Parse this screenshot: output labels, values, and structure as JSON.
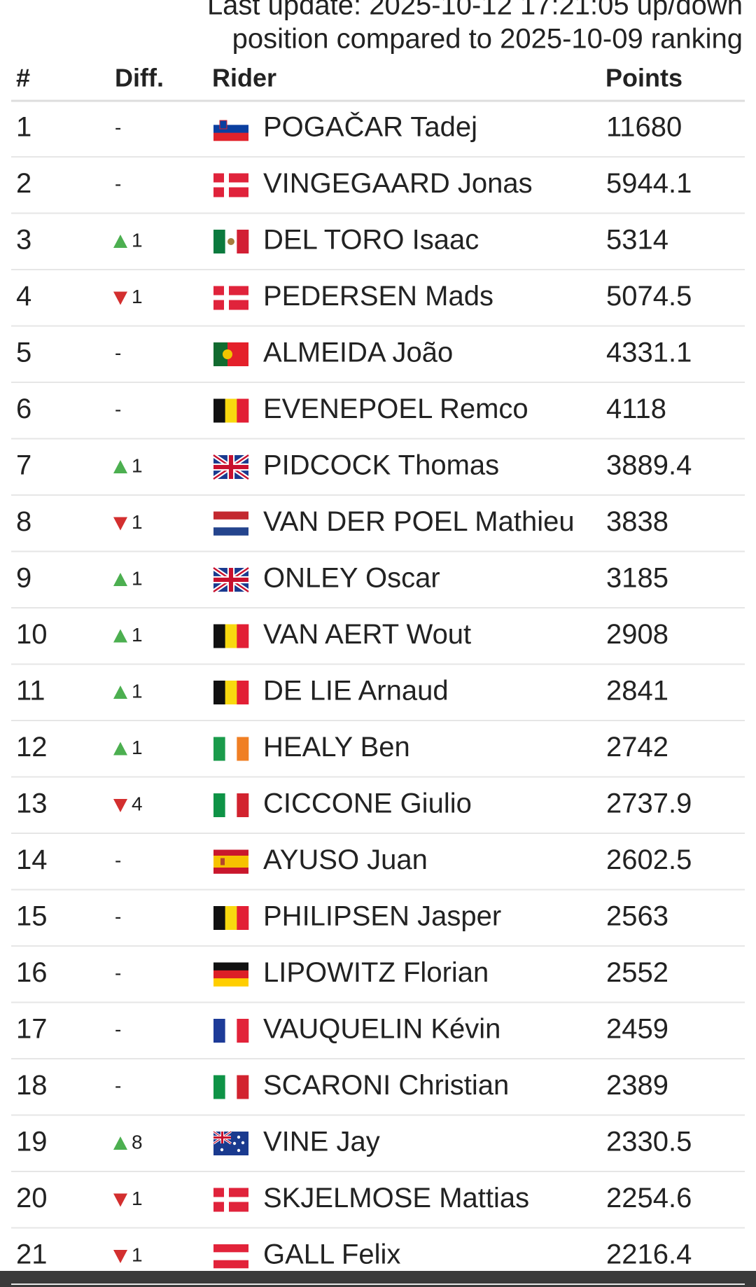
{
  "header": {
    "lines": [
      "Last update: 2025-10-12 17:21:05 up/down",
      "position compared to 2025-10-09 ranking"
    ]
  },
  "table": {
    "columns": [
      "#",
      "Diff.",
      "Rider",
      "Points"
    ],
    "rows": [
      {
        "rank": 1,
        "move": "-",
        "rider": "POGAČAR Tadej",
        "points": 11680
      },
      {
        "rank": 2,
        "move": "-",
        "rider": "VINGEGAARD Jonas",
        "points": 5944.1
      },
      {
        "rank": 3,
        "move": {
          "dir": "up",
          "n": 1
        },
        "rider": "DEL TORO Isaac",
        "points": 5314
      },
      {
        "rank": 4,
        "move": {
          "dir": "down",
          "n": 1
        },
        "rider": "PEDERSEN Mads",
        "points": 5074.5
      },
      {
        "rank": 5,
        "move": "-",
        "rider": "ALMEIDA João",
        "points": 4331.1
      },
      {
        "rank": 6,
        "move": "-",
        "rider": "EVENEPOEL Remco",
        "points": 4118
      },
      {
        "rank": 7,
        "move": {
          "dir": "up",
          "n": 1
        },
        "rider": "PIDCOCK Thomas",
        "points": 3889.4
      },
      {
        "rank": 8,
        "move": {
          "dir": "down",
          "n": 1
        },
        "rider": "VAN DER POEL Mathieu",
        "points": 3838
      },
      {
        "rank": 9,
        "move": {
          "dir": "up",
          "n": 1
        },
        "rider": "ONLEY Oscar",
        "points": 3185
      },
      {
        "rank": 10,
        "move": {
          "dir": "up",
          "n": 1
        },
        "rider": "VAN AERT Wout",
        "points": 2908
      },
      {
        "rank": 11,
        "move": {
          "dir": "up",
          "n": 1
        },
        "rider": "DE LIE Arnaud",
        "points": 2841
      },
      {
        "rank": 12,
        "move": {
          "dir": "up",
          "n": 1
        },
        "rider": "HEALY Ben",
        "points": 2742
      },
      {
        "rank": 13,
        "move": {
          "dir": "down",
          "n": 4
        },
        "rider": "CICCONE Giulio",
        "points": 2737.9
      },
      {
        "rank": 14,
        "move": "-",
        "rider": "AYUSO Juan",
        "points": 2602.5
      },
      {
        "rank": 15,
        "move": "-",
        "rider": "PHILIPSEN Jasper",
        "points": 2563
      },
      {
        "rank": 16,
        "move": "-",
        "rider": "LIPOWITZ Florian",
        "points": 2552
      },
      {
        "rank": 17,
        "move": "-",
        "rider": "VAUQUELIN Kévin",
        "points": 2459
      },
      {
        "rank": 18,
        "move": "-",
        "rider": "SCARONI Christian",
        "points": 2389
      },
      {
        "rank": 19,
        "move": {
          "dir": "up",
          "n": 8
        },
        "rider": "VINE Jay",
        "points": 2330.5
      },
      {
        "rank": 20,
        "move": {
          "dir": "down",
          "n": 1
        },
        "rider": "SKJELMOSE Mattias",
        "points": 2254.6
      },
      {
        "rank": 21,
        "move": {
          "dir": "down",
          "n": 1
        },
        "rider": "GALL Felix",
        "points": 2216.4
      }
    ]
  }
}
